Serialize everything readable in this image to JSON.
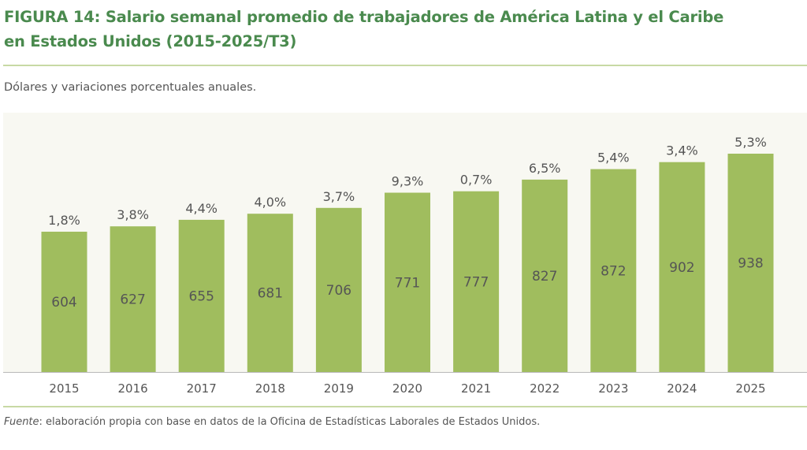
{
  "figure": {
    "title_line1": "FIGURA 14: Salario semanal promedio de trabajadores de América Latina y el Caribe",
    "title_line2": "en Estados Unidos (2015-2025/T3)",
    "subtitle": "Dólares y variaciones porcentuales anuales.",
    "source_label": "Fuente",
    "source_text": ": elaboración propia con base en datos de la Oficina de Estadísticas Laborales de Estados Unidos."
  },
  "colors": {
    "title": "#4a8a4e",
    "bar": "#a0bd5e",
    "panel": "#f8f8f2",
    "rule": "#c7d9a4",
    "text": "#555555"
  },
  "chart_data": {
    "type": "bar",
    "title": "Salario semanal promedio de trabajadores de América Latina y el Caribe en Estados Unidos (2015-2025/T3)",
    "xlabel": "",
    "ylabel": "Dólares",
    "categories": [
      "2015",
      "2016",
      "2017",
      "2018",
      "2019",
      "2020",
      "2021",
      "2022",
      "2023",
      "2024",
      "2025"
    ],
    "values": [
      604,
      627,
      655,
      681,
      706,
      771,
      777,
      827,
      872,
      902,
      938
    ],
    "value_labels": [
      "604",
      "627",
      "655",
      "681",
      "706",
      "771",
      "777",
      "827",
      "872",
      "902",
      "938"
    ],
    "annotations": [
      "1,8%",
      "3,8%",
      "4,4%",
      "4,0%",
      "3,7%",
      "9,3%",
      "0,7%",
      "6,5%",
      "5,4%",
      "3,4%",
      "5,3%"
    ],
    "annotation_meaning": "variación porcentual anual",
    "ylim": [
      0,
      1000
    ],
    "grid": false,
    "legend": "none"
  }
}
